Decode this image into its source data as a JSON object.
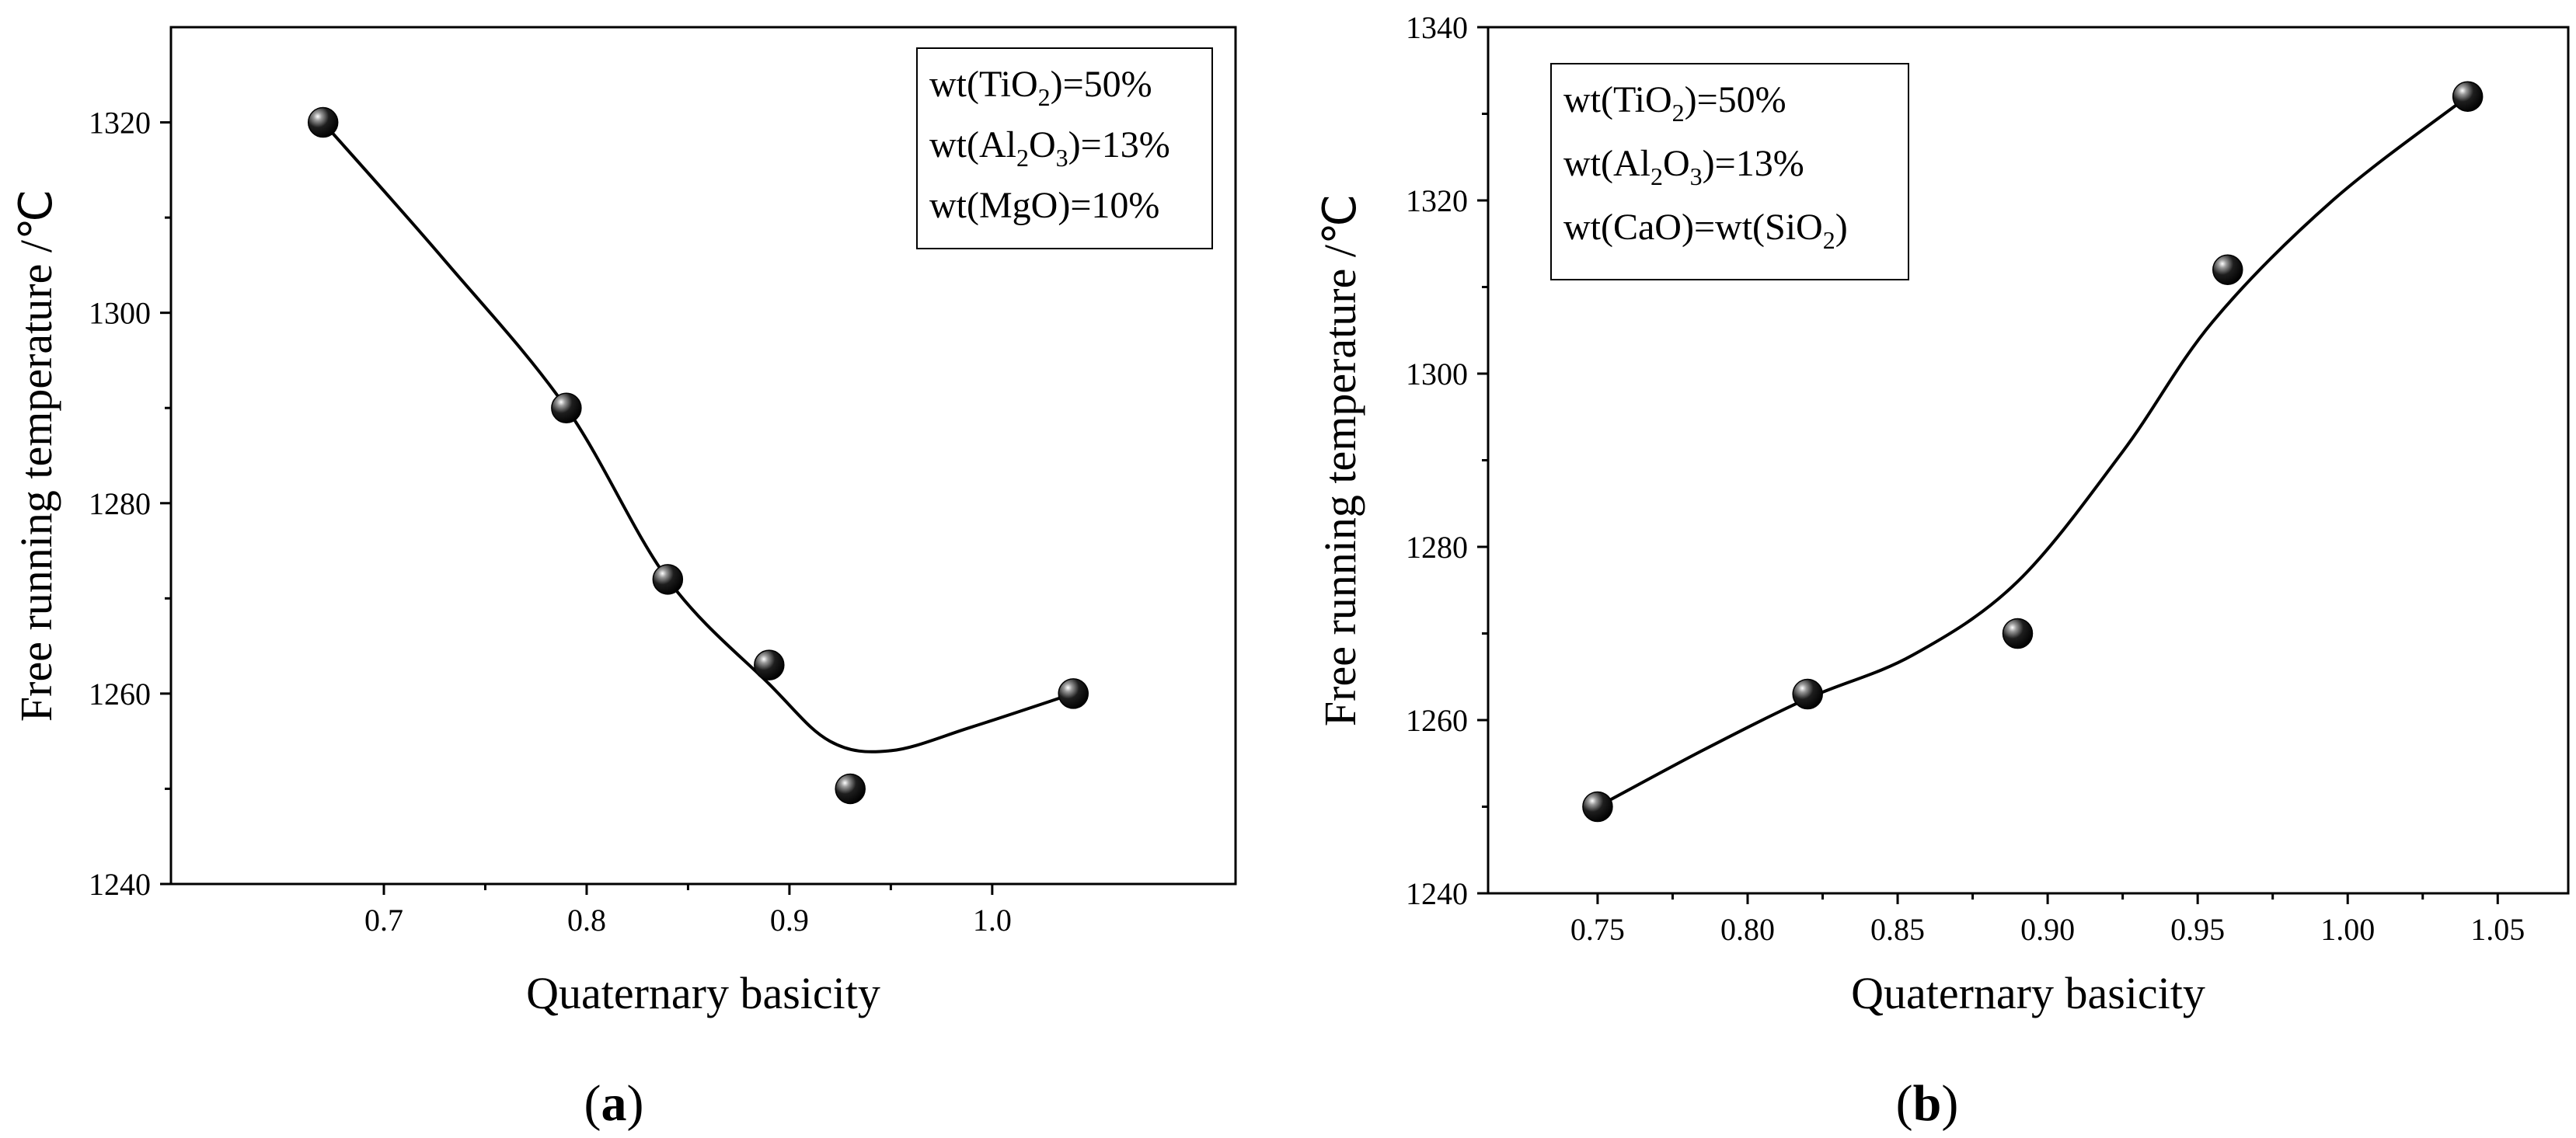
{
  "chart_data": [
    {
      "type": "scatter",
      "panel_label": "a",
      "xlabel": "Quaternary basicity",
      "ylabel": "Free running temperature /℃",
      "xlim": [
        0.595,
        1.12
      ],
      "ylim": [
        1240,
        1330
      ],
      "xticks": [
        "0.7",
        "0.8",
        "0.9",
        "1.0"
      ],
      "xtick_values": [
        0.7,
        0.8,
        0.9,
        1.0
      ],
      "yticks": [
        "1240",
        "1260",
        "1280",
        "1300",
        "1320"
      ],
      "ytick_values": [
        1240,
        1260,
        1280,
        1300,
        1320
      ],
      "points": {
        "x": [
          0.67,
          0.79,
          0.84,
          0.89,
          0.93,
          1.04
        ],
        "y": [
          1320,
          1290,
          1272,
          1263,
          1250,
          1260
        ]
      },
      "fit_curve": {
        "x": [
          0.67,
          0.73,
          0.79,
          0.84,
          0.89,
          0.92,
          0.95,
          0.99,
          1.04
        ],
        "y": [
          1320,
          1305.5,
          1290,
          1272,
          1261,
          1255,
          1254,
          1256.5,
          1260
        ]
      },
      "legend": {
        "position": "top-right",
        "entries": [
          {
            "pre": "wt(TiO",
            "sub": "2",
            "post": ")=50%"
          },
          {
            "pre": "wt(Al",
            "sub": "2",
            "mid": "O",
            "sub2": "3",
            "post": ")=13%"
          },
          {
            "pre": "wt(MgO)=10%"
          }
        ]
      }
    },
    {
      "type": "scatter",
      "panel_label": "b",
      "xlabel": "Quaternary basicity",
      "ylabel": "Free running temperature /℃",
      "xlim": [
        0.7135,
        1.0735
      ],
      "ylim": [
        1240,
        1340
      ],
      "xticks": [
        "0.75",
        "0.80",
        "0.85",
        "0.90",
        "0.95",
        "1.00",
        "1.05"
      ],
      "xtick_values": [
        0.75,
        0.8,
        0.85,
        0.9,
        0.95,
        1.0,
        1.05
      ],
      "yticks": [
        "1240",
        "1260",
        "1280",
        "1300",
        "1320",
        "1340"
      ],
      "ytick_values": [
        1240,
        1260,
        1280,
        1300,
        1320,
        1340
      ],
      "points": {
        "x": [
          0.75,
          0.82,
          0.89,
          0.96,
          1.04
        ],
        "y": [
          1250,
          1263,
          1270,
          1312,
          1332
        ]
      },
      "fit_curve": {
        "x": [
          0.75,
          0.785,
          0.82,
          0.855,
          0.89,
          0.925,
          0.955,
          0.995,
          1.04
        ],
        "y": [
          1250,
          1256.5,
          1262.5,
          1267.5,
          1276,
          1291,
          1306,
          1320,
          1332
        ]
      },
      "legend": {
        "position": "top-left",
        "entries": [
          {
            "pre": "wt(TiO",
            "sub": "2",
            "post": ")=50%"
          },
          {
            "pre": "wt(Al",
            "sub": "2",
            "mid": "O",
            "sub2": "3",
            "post": ")=13%"
          },
          {
            "pre": "wt(CaO)=wt(SiO",
            "sub": "2",
            "post": ")"
          }
        ]
      }
    }
  ]
}
